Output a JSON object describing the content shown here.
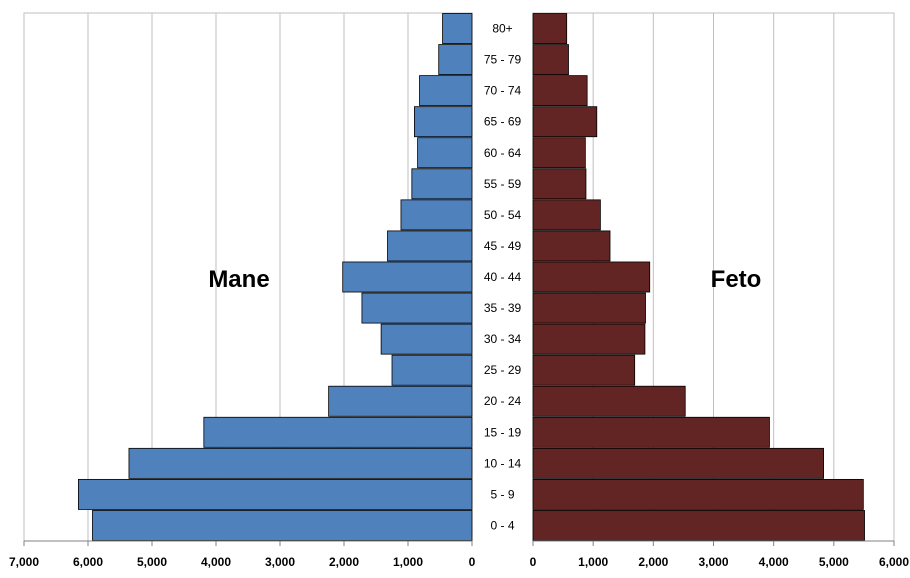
{
  "chart_data": {
    "type": "bar",
    "orientation": "horizontal",
    "layout": "population-pyramid",
    "categories": [
      "0 - 4",
      "5 - 9",
      "10 - 14",
      "15 - 19",
      "20 - 24",
      "25 - 29",
      "30 - 34",
      "35 - 39",
      "40 - 44",
      "45 - 49",
      "50 - 54",
      "55 - 59",
      "60 - 64",
      "65 - 69",
      "70 - 74",
      "75 - 79",
      "80+"
    ],
    "series": [
      {
        "name": "Mane",
        "color": "#4f81bd",
        "values": [
          5930,
          6150,
          5360,
          4190,
          2240,
          1250,
          1420,
          1720,
          2020,
          1320,
          1110,
          940,
          850,
          900,
          820,
          520,
          460
        ],
        "xlim": [
          7000,
          0
        ],
        "ticks": [
          "7,000",
          "6,000",
          "5,000",
          "4,000",
          "3,000",
          "2,000",
          "1,000",
          "0"
        ]
      },
      {
        "name": "Feto",
        "color": "#632523",
        "values": [
          5510,
          5490,
          4830,
          3930,
          2530,
          1690,
          1860,
          1870,
          1940,
          1280,
          1120,
          880,
          870,
          1060,
          900,
          590,
          560
        ],
        "xlim": [
          0,
          6000
        ],
        "ticks": [
          "0",
          "1,000",
          "2,000",
          "3,000",
          "4,000",
          "5,000",
          "6,000"
        ]
      }
    ],
    "grid": true,
    "legend": "none"
  }
}
